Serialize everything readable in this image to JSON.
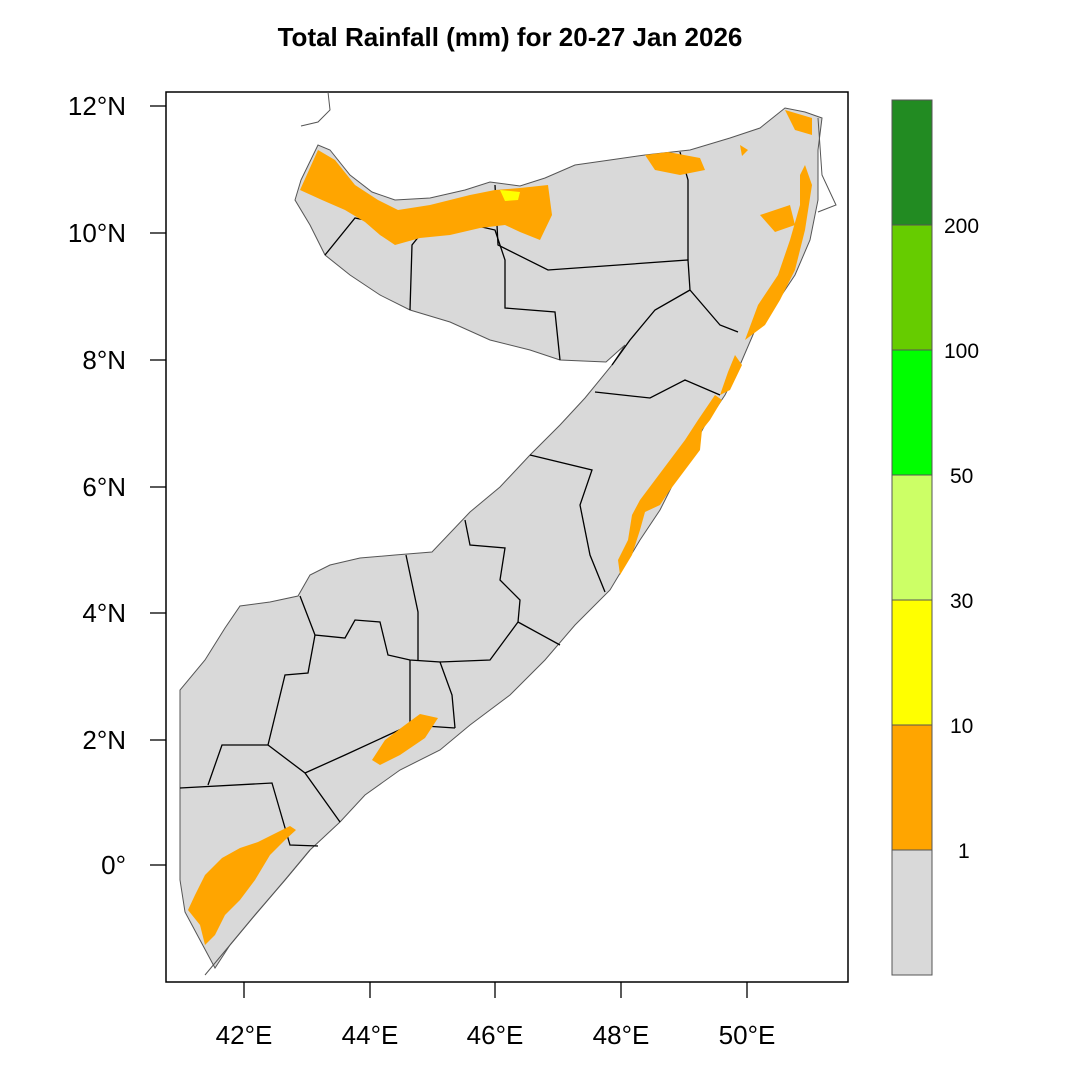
{
  "title": "Total Rainfall (mm) for 20-27 Jan 2026",
  "map": {
    "lat_ticks": [
      "12°N",
      "10°N",
      "8°N",
      "6°N",
      "4°N",
      "2°N",
      "0°"
    ],
    "lon_ticks": [
      "42°E",
      "44°E",
      "46°E",
      "48°E",
      "50°E"
    ],
    "colors": {
      "land_low": "#d9d9d9",
      "rain_1_10": "#ffa500",
      "rain_10_30": "#ffff00",
      "border": "#000000",
      "coast": "#555555"
    }
  },
  "colorbar": {
    "levels": [
      "1",
      "10",
      "30",
      "50",
      "100",
      "200"
    ],
    "colors": [
      "#d9d9d9",
      "#ffa500",
      "#ffff00",
      "#ccff66",
      "#00ff00",
      "#66cc00",
      "#228b22"
    ]
  }
}
